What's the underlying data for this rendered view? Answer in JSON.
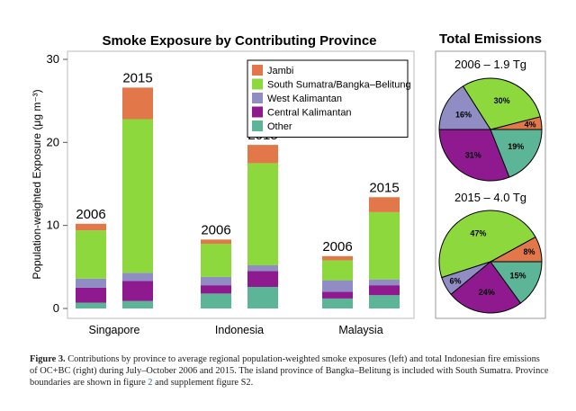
{
  "chart_data": [
    {
      "type": "bar",
      "stacked": true,
      "title": "Smoke Exposure by Contributing Province",
      "xlabel": "",
      "ylabel": "Population-weighted Exposure (μg m⁻³)",
      "ylim": [
        0,
        30
      ],
      "yticks": [
        0,
        10,
        20,
        30
      ],
      "categories": [
        "Singapore",
        "Indonesia",
        "Malaysia"
      ],
      "years": [
        "2006",
        "2015"
      ],
      "legend_position": "top-right",
      "series": [
        {
          "name": "Other",
          "color": "#5cb597",
          "values": {
            "2006": [
              0.7,
              1.8,
              1.2
            ],
            "2015": [
              0.9,
              2.6,
              1.6
            ]
          }
        },
        {
          "name": "Central Kalimantan",
          "color": "#8f1a8f",
          "values": {
            "2006": [
              1.8,
              1.0,
              0.8
            ],
            "2015": [
              2.4,
              1.9,
              1.2
            ]
          }
        },
        {
          "name": "West Kalimantan",
          "color": "#8f8dc3",
          "values": {
            "2006": [
              1.1,
              1.0,
              1.4
            ],
            "2015": [
              1.0,
              0.7,
              0.7
            ]
          }
        },
        {
          "name": "South Sumatra/Bangka–Belitung",
          "color": "#8dd93d",
          "values": {
            "2006": [
              5.8,
              4.0,
              2.4
            ],
            "2015": [
              18.5,
              12.3,
              8.1
            ]
          }
        },
        {
          "name": "Jambi",
          "color": "#e2784a",
          "values": {
            "2006": [
              0.8,
              0.5,
              0.5
            ],
            "2015": [
              3.8,
              2.2,
              1.8
            ]
          }
        }
      ]
    },
    {
      "type": "pie",
      "title": "Total Emissions",
      "pies": [
        {
          "label": "2006 – 1.9 Tg",
          "slices": [
            {
              "name": "Jambi",
              "value": 4,
              "label": "4%",
              "color": "#e2784a"
            },
            {
              "name": "South Sumatra/Bangka–Belitung",
              "value": 30,
              "label": "30%",
              "color": "#8dd93d"
            },
            {
              "name": "West Kalimantan",
              "value": 16,
              "label": "16%",
              "color": "#8f8dc3"
            },
            {
              "name": "Central Kalimantan",
              "value": 31,
              "label": "31%",
              "color": "#8f1a8f"
            },
            {
              "name": "Other",
              "value": 19,
              "label": "19%",
              "color": "#5cb597"
            }
          ]
        },
        {
          "label": "2015 – 4.0 Tg",
          "slices": [
            {
              "name": "Jambi",
              "value": 8,
              "label": "8%",
              "color": "#e2784a"
            },
            {
              "name": "South Sumatra/Bangka–Belitung",
              "value": 47,
              "label": "47%",
              "color": "#8dd93d"
            },
            {
              "name": "West Kalimantan",
              "value": 6,
              "label": "6%",
              "color": "#8f8dc3"
            },
            {
              "name": "Central Kalimantan",
              "value": 24,
              "label": "24%",
              "color": "#8f1a8f"
            },
            {
              "name": "Other",
              "value": 15,
              "label": "15%",
              "color": "#5cb597"
            }
          ]
        }
      ]
    }
  ],
  "caption": {
    "label": "Figure 3.",
    "text_before_ref": " Contributions by province to average regional population-weighted smoke exposures (left) and total Indonesian fire emissions of OC+BC (right) during July–October 2006 and 2015. The island province of Bangka–Belitung is included with South Sumatra. Province boundaries are shown in figure ",
    "ref": "2",
    "text_after_ref": " and supplement figure S2."
  }
}
